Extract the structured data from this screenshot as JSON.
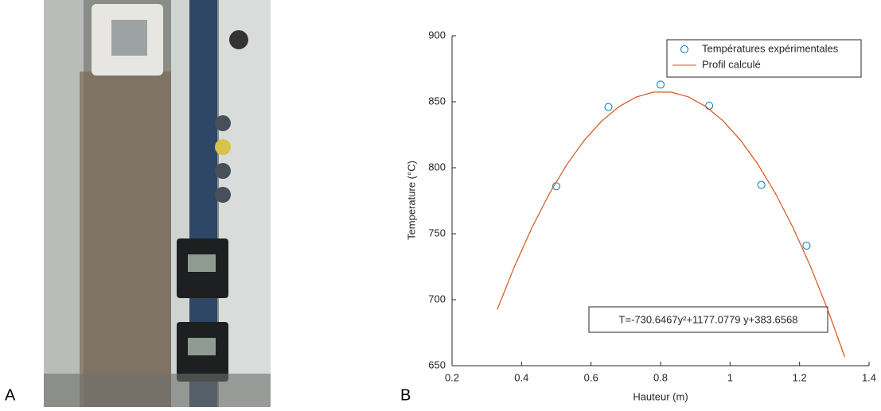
{
  "panels": [
    "A",
    "B"
  ],
  "chart_data": {
    "type": "scatter",
    "xlabel": "Hauteur (m)",
    "ylabel": "Temperature (°C)",
    "annotation": "T=-730.6467y²+1177.0779 y+383.6568",
    "xlim": [
      0.2,
      1.4
    ],
    "xticks": [
      0.2,
      0.4,
      0.6,
      0.8,
      1,
      1.2,
      1.4
    ],
    "ylim": [
      650,
      900
    ],
    "yticks": [
      650,
      700,
      750,
      800,
      850,
      900
    ],
    "legend": "upper right",
    "series": [
      {
        "name": "Températures expérimentales",
        "color": "#0072bd",
        "style": "marker",
        "x": [
          0.5,
          0.65,
          0.8,
          0.94,
          1.09,
          1.22
        ],
        "values": [
          786,
          846,
          863,
          847,
          787,
          741
        ]
      },
      {
        "name": "Profil calculé",
        "color": "#d95319",
        "style": "line",
        "x": [
          0.33,
          0.38,
          0.43,
          0.48,
          0.53,
          0.58,
          0.63,
          0.68,
          0.73,
          0.78,
          0.83,
          0.88,
          0.93,
          0.98,
          1.03,
          1.08,
          1.13,
          1.18,
          1.23,
          1.28,
          1.33
        ],
        "values": [
          692.5,
          725.4,
          754.7,
          780.3,
          802.3,
          820.6,
          835.2,
          846.2,
          853.6,
          857.3,
          857.3,
          853.7,
          846.4,
          835.5,
          820.9,
          802.7,
          780.8,
          755.3,
          726.1,
          693.2,
          656.7
        ]
      }
    ]
  }
}
